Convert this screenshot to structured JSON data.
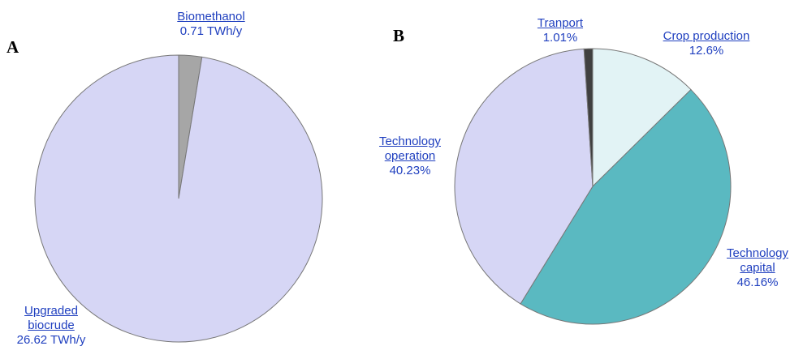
{
  "chart_data": [
    {
      "type": "pie",
      "panel": "A",
      "categories": [
        "Biomethanol",
        "Upgraded biocrude"
      ],
      "values": [
        0.71,
        26.62
      ],
      "value_labels": [
        "0.71 TWh/y",
        "26.62 TWh/y"
      ],
      "colors": [
        "#a6a6a6",
        "#d6d6f5"
      ]
    },
    {
      "type": "pie",
      "panel": "B",
      "categories": [
        "Crop production",
        "Technology capital",
        "Technology operation",
        "Tranport"
      ],
      "values": [
        12.6,
        46.16,
        40.23,
        1.01
      ],
      "value_labels": [
        "12.6%",
        "46.16%",
        "40.23%",
        "1.01%"
      ],
      "colors": [
        "#e2f3f5",
        "#5ab9c1",
        "#d6d6f5",
        "#404040"
      ]
    }
  ]
}
